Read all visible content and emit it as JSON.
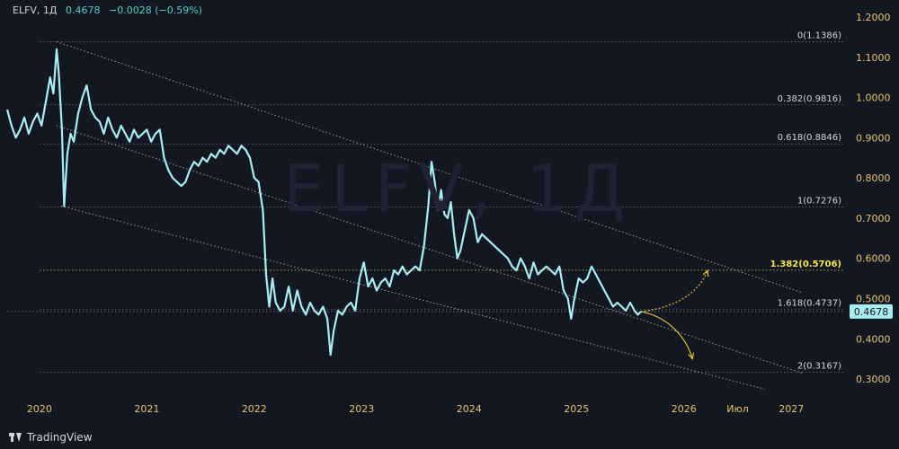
{
  "header": {
    "symbol": "ELFV, 1Д",
    "last_value": "0.4678",
    "change": "−0.0028 (−0.59%)"
  },
  "watermark": "ELFV, 1Д",
  "brand": "TradingView",
  "chart_data": {
    "type": "line",
    "ylim": [
      0.26,
      1.22
    ],
    "yticks": [
      "1.2000",
      "1.1000",
      "1.0000",
      "0.9000",
      "0.8000",
      "0.7000",
      "0.6000",
      "0.5000",
      "0.4000",
      "0.3000"
    ],
    "ytick_values": [
      1.2,
      1.1,
      1.0,
      0.9,
      0.8,
      0.7,
      0.6,
      0.5,
      0.4,
      0.3
    ],
    "x_ticks": [
      {
        "label": "2020",
        "t": 2020.0
      },
      {
        "label": "2021",
        "t": 2021.0
      },
      {
        "label": "2022",
        "t": 2022.0
      },
      {
        "label": "2023",
        "t": 2023.0
      },
      {
        "label": "2024",
        "t": 2024.0
      },
      {
        "label": "2025",
        "t": 2025.0
      },
      {
        "label": "2026",
        "t": 2026.0
      },
      {
        "label": "Июл",
        "t": 2026.5
      },
      {
        "label": "2027",
        "t": 2027.0
      }
    ],
    "xlim": [
      2019.7,
      2027.5
    ],
    "last_price": {
      "value": 0.4678,
      "label": "0.4678"
    },
    "series": [
      {
        "points": [
          [
            2019.7,
            0.97
          ],
          [
            2019.74,
            0.93
          ],
          [
            2019.78,
            0.9
          ],
          [
            2019.82,
            0.92
          ],
          [
            2019.86,
            0.95
          ],
          [
            2019.9,
            0.91
          ],
          [
            2019.94,
            0.94
          ],
          [
            2019.98,
            0.96
          ],
          [
            2020.02,
            0.93
          ],
          [
            2020.06,
            0.99
          ],
          [
            2020.1,
            1.05
          ],
          [
            2020.13,
            1.01
          ],
          [
            2020.16,
            1.12
          ],
          [
            2020.18,
            1.06
          ],
          [
            2020.21,
            0.92
          ],
          [
            2020.23,
            0.73
          ],
          [
            2020.26,
            0.86
          ],
          [
            2020.29,
            0.91
          ],
          [
            2020.32,
            0.89
          ],
          [
            2020.36,
            0.96
          ],
          [
            2020.4,
            1.0
          ],
          [
            2020.44,
            1.03
          ],
          [
            2020.48,
            0.97
          ],
          [
            2020.52,
            0.95
          ],
          [
            2020.56,
            0.94
          ],
          [
            2020.6,
            0.91
          ],
          [
            2020.64,
            0.95
          ],
          [
            2020.68,
            0.92
          ],
          [
            2020.72,
            0.9
          ],
          [
            2020.76,
            0.93
          ],
          [
            2020.8,
            0.91
          ],
          [
            2020.84,
            0.89
          ],
          [
            2020.88,
            0.92
          ],
          [
            2020.92,
            0.9
          ],
          [
            2020.96,
            0.91
          ],
          [
            2021.0,
            0.92
          ],
          [
            2021.04,
            0.89
          ],
          [
            2021.08,
            0.91
          ],
          [
            2021.12,
            0.92
          ],
          [
            2021.16,
            0.85
          ],
          [
            2021.2,
            0.82
          ],
          [
            2021.24,
            0.8
          ],
          [
            2021.28,
            0.79
          ],
          [
            2021.32,
            0.78
          ],
          [
            2021.36,
            0.79
          ],
          [
            2021.4,
            0.82
          ],
          [
            2021.44,
            0.84
          ],
          [
            2021.48,
            0.83
          ],
          [
            2021.52,
            0.85
          ],
          [
            2021.56,
            0.84
          ],
          [
            2021.6,
            0.86
          ],
          [
            2021.64,
            0.85
          ],
          [
            2021.68,
            0.87
          ],
          [
            2021.72,
            0.86
          ],
          [
            2021.76,
            0.88
          ],
          [
            2021.8,
            0.87
          ],
          [
            2021.84,
            0.86
          ],
          [
            2021.88,
            0.88
          ],
          [
            2021.92,
            0.87
          ],
          [
            2021.96,
            0.85
          ],
          [
            2022.0,
            0.8
          ],
          [
            2022.04,
            0.79
          ],
          [
            2022.08,
            0.72
          ],
          [
            2022.11,
            0.56
          ],
          [
            2022.14,
            0.48
          ],
          [
            2022.17,
            0.55
          ],
          [
            2022.2,
            0.49
          ],
          [
            2022.24,
            0.47
          ],
          [
            2022.28,
            0.48
          ],
          [
            2022.32,
            0.53
          ],
          [
            2022.36,
            0.47
          ],
          [
            2022.4,
            0.52
          ],
          [
            2022.44,
            0.48
          ],
          [
            2022.48,
            0.46
          ],
          [
            2022.52,
            0.49
          ],
          [
            2022.56,
            0.47
          ],
          [
            2022.6,
            0.46
          ],
          [
            2022.64,
            0.48
          ],
          [
            2022.68,
            0.45
          ],
          [
            2022.71,
            0.36
          ],
          [
            2022.74,
            0.42
          ],
          [
            2022.78,
            0.47
          ],
          [
            2022.82,
            0.46
          ],
          [
            2022.86,
            0.48
          ],
          [
            2022.9,
            0.49
          ],
          [
            2022.94,
            0.47
          ],
          [
            2022.98,
            0.55
          ],
          [
            2023.02,
            0.59
          ],
          [
            2023.06,
            0.53
          ],
          [
            2023.1,
            0.55
          ],
          [
            2023.14,
            0.52
          ],
          [
            2023.18,
            0.54
          ],
          [
            2023.22,
            0.55
          ],
          [
            2023.26,
            0.53
          ],
          [
            2023.3,
            0.57
          ],
          [
            2023.34,
            0.56
          ],
          [
            2023.38,
            0.58
          ],
          [
            2023.42,
            0.56
          ],
          [
            2023.46,
            0.57
          ],
          [
            2023.5,
            0.58
          ],
          [
            2023.54,
            0.57
          ],
          [
            2023.58,
            0.63
          ],
          [
            2023.62,
            0.73
          ],
          [
            2023.65,
            0.84
          ],
          [
            2023.68,
            0.79
          ],
          [
            2023.71,
            0.72
          ],
          [
            2023.74,
            0.77
          ],
          [
            2023.77,
            0.71
          ],
          [
            2023.8,
            0.7
          ],
          [
            2023.83,
            0.74
          ],
          [
            2023.86,
            0.66
          ],
          [
            2023.89,
            0.6
          ],
          [
            2023.92,
            0.62
          ],
          [
            2023.96,
            0.67
          ],
          [
            2024.0,
            0.72
          ],
          [
            2024.04,
            0.7
          ],
          [
            2024.08,
            0.64
          ],
          [
            2024.12,
            0.66
          ],
          [
            2024.16,
            0.65
          ],
          [
            2024.2,
            0.64
          ],
          [
            2024.24,
            0.63
          ],
          [
            2024.28,
            0.62
          ],
          [
            2024.32,
            0.61
          ],
          [
            2024.36,
            0.6
          ],
          [
            2024.4,
            0.58
          ],
          [
            2024.44,
            0.57
          ],
          [
            2024.48,
            0.6
          ],
          [
            2024.52,
            0.58
          ],
          [
            2024.56,
            0.55
          ],
          [
            2024.6,
            0.59
          ],
          [
            2024.64,
            0.56
          ],
          [
            2024.68,
            0.57
          ],
          [
            2024.72,
            0.58
          ],
          [
            2024.76,
            0.57
          ],
          [
            2024.8,
            0.56
          ],
          [
            2024.84,
            0.58
          ],
          [
            2024.88,
            0.52
          ],
          [
            2024.92,
            0.5
          ],
          [
            2024.95,
            0.45
          ],
          [
            2024.98,
            0.5
          ],
          [
            2025.02,
            0.55
          ],
          [
            2025.06,
            0.54
          ],
          [
            2025.1,
            0.55
          ],
          [
            2025.14,
            0.58
          ],
          [
            2025.18,
            0.56
          ],
          [
            2025.22,
            0.54
          ],
          [
            2025.26,
            0.52
          ],
          [
            2025.3,
            0.5
          ],
          [
            2025.34,
            0.48
          ],
          [
            2025.38,
            0.49
          ],
          [
            2025.42,
            0.48
          ],
          [
            2025.46,
            0.47
          ],
          [
            2025.5,
            0.49
          ],
          [
            2025.54,
            0.47
          ],
          [
            2025.57,
            0.46
          ],
          [
            2025.6,
            0.4678
          ]
        ]
      }
    ],
    "fib_levels": [
      {
        "label": "0(1.1386)",
        "value": 1.1386,
        "highlight": false
      },
      {
        "label": "0.382(0.9816)",
        "value": 0.9816,
        "highlight": false
      },
      {
        "label": "0.618(0.8846)",
        "value": 0.8846,
        "highlight": false
      },
      {
        "label": "1(0.7276)",
        "value": 0.7276,
        "highlight": false
      },
      {
        "label": "1.382(0.5706)",
        "value": 0.5706,
        "highlight": true
      },
      {
        "label": "1.618(0.4737)",
        "value": 0.4737,
        "highlight": false
      },
      {
        "label": "2(0.3167)",
        "value": 0.3167,
        "highlight": false
      }
    ],
    "channel": {
      "upper": [
        [
          2020.16,
          1.1386
        ],
        [
          2027.1,
          0.515
        ]
      ],
      "middle": [
        [
          2020.16,
          0.93
        ],
        [
          2027.1,
          0.315
        ]
      ],
      "lower": [
        [
          2020.2,
          0.73
        ],
        [
          2026.75,
          0.275
        ]
      ]
    },
    "forecast_up": [
      [
        2025.6,
        0.4678
      ],
      [
        2025.95,
        0.478
      ],
      [
        2026.15,
        0.52
      ],
      [
        2026.22,
        0.57
      ]
    ],
    "forecast_down": [
      [
        2025.6,
        0.4678
      ],
      [
        2025.85,
        0.455
      ],
      [
        2026.02,
        0.405
      ],
      [
        2026.08,
        0.35
      ]
    ],
    "colors": {
      "background": "#131722",
      "price": "#a8eef0",
      "grid_level": "#8a8e98",
      "fib_highlight": "#f5e94a",
      "axis_text": "#e6c36a",
      "last_badge_bg": "#a8eef0",
      "last_badge_text": "#131722",
      "forecast": "#e0c030"
    }
  }
}
